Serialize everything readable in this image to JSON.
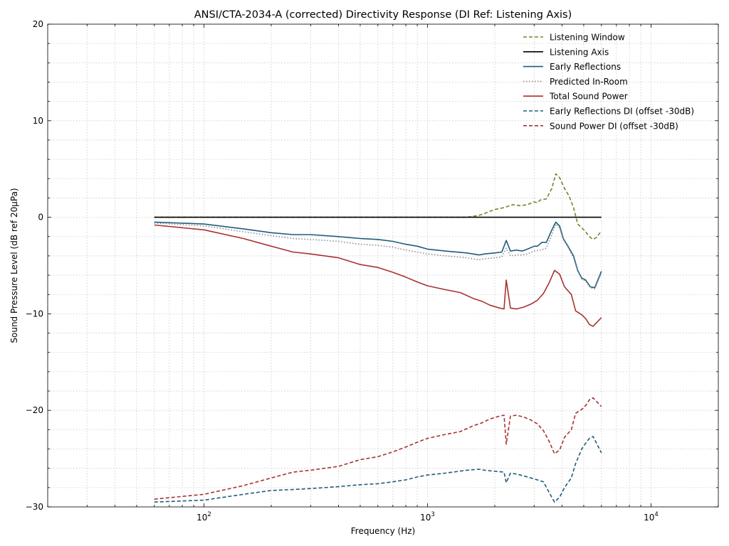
{
  "chart_data": {
    "type": "line",
    "title": "ANSI/CTA-2034-A (corrected) Directivity Response (DI Ref: Listening Axis)",
    "xlabel": "Frequency (Hz)",
    "ylabel": "Sound Pressure Level (dB ref 20µPa)",
    "xscale": "log",
    "xlim": [
      20,
      20000
    ],
    "ylim": [
      -30,
      20
    ],
    "yticks": [
      20,
      10,
      0,
      -10,
      -20,
      -30
    ],
    "ytick_labels": [
      "20",
      "10",
      "0",
      "−10",
      "−20",
      "−30"
    ],
    "xticks": [
      100,
      1000,
      10000
    ],
    "xtick_base": "10",
    "xtick_exponents": [
      "2",
      "3",
      "4"
    ],
    "grid": true,
    "legend_position": "top-right",
    "series": [
      {
        "name": "Listening Window",
        "color": "#6b8a2e",
        "style": "dashed",
        "points": [
          [
            60,
            0
          ],
          [
            400,
            0
          ],
          [
            1500,
            0
          ],
          [
            1700,
            0.2
          ],
          [
            1800,
            0.4
          ],
          [
            2000,
            0.8
          ],
          [
            2200,
            1.0
          ],
          [
            2400,
            1.3
          ],
          [
            2600,
            1.2
          ],
          [
            2800,
            1.3
          ],
          [
            3000,
            1.6
          ],
          [
            3100,
            1.5
          ],
          [
            3200,
            1.8
          ],
          [
            3400,
            1.9
          ],
          [
            3600,
            3.0
          ],
          [
            3750,
            4.5
          ],
          [
            3900,
            4.1
          ],
          [
            4100,
            3.0
          ],
          [
            4300,
            2.2
          ],
          [
            4500,
            1.0
          ],
          [
            4700,
            -0.7
          ],
          [
            4900,
            -1.1
          ],
          [
            5100,
            -1.5
          ],
          [
            5300,
            -2.0
          ],
          [
            5500,
            -2.3
          ],
          [
            5700,
            -2.1
          ],
          [
            6000,
            -1.4
          ]
        ]
      },
      {
        "name": "Listening Axis",
        "color": "#000000",
        "style": "solid",
        "points": [
          [
            60,
            0
          ],
          [
            6000,
            0
          ]
        ]
      },
      {
        "name": "Early Reflections",
        "color": "#1f5c7a",
        "style": "solid",
        "points": [
          [
            60,
            -0.5
          ],
          [
            100,
            -0.7
          ],
          [
            150,
            -1.2
          ],
          [
            200,
            -1.6
          ],
          [
            250,
            -1.8
          ],
          [
            300,
            -1.8
          ],
          [
            400,
            -2.0
          ],
          [
            500,
            -2.2
          ],
          [
            600,
            -2.3
          ],
          [
            700,
            -2.5
          ],
          [
            800,
            -2.8
          ],
          [
            900,
            -3.0
          ],
          [
            1000,
            -3.3
          ],
          [
            1200,
            -3.5
          ],
          [
            1500,
            -3.7
          ],
          [
            1700,
            -3.9
          ],
          [
            1800,
            -3.8
          ],
          [
            2000,
            -3.7
          ],
          [
            2150,
            -3.6
          ],
          [
            2250,
            -2.4
          ],
          [
            2350,
            -3.5
          ],
          [
            2500,
            -3.4
          ],
          [
            2650,
            -3.5
          ],
          [
            2800,
            -3.3
          ],
          [
            3000,
            -3.0
          ],
          [
            3100,
            -3.0
          ],
          [
            3250,
            -2.6
          ],
          [
            3400,
            -2.6
          ],
          [
            3600,
            -1.3
          ],
          [
            3750,
            -0.5
          ],
          [
            3900,
            -0.9
          ],
          [
            4050,
            -2.2
          ],
          [
            4250,
            -3.0
          ],
          [
            4500,
            -4.0
          ],
          [
            4700,
            -5.5
          ],
          [
            4900,
            -6.3
          ],
          [
            5100,
            -6.5
          ],
          [
            5350,
            -7.2
          ],
          [
            5600,
            -7.3
          ],
          [
            6000,
            -5.6
          ]
        ]
      },
      {
        "name": "Predicted In-Room",
        "color": "#8c8c8c",
        "style": "dotted",
        "points": [
          [
            60,
            -0.6
          ],
          [
            100,
            -0.9
          ],
          [
            150,
            -1.5
          ],
          [
            200,
            -1.9
          ],
          [
            250,
            -2.2
          ],
          [
            300,
            -2.3
          ],
          [
            400,
            -2.5
          ],
          [
            500,
            -2.8
          ],
          [
            600,
            -2.9
          ],
          [
            700,
            -3.1
          ],
          [
            800,
            -3.4
          ],
          [
            900,
            -3.6
          ],
          [
            1000,
            -3.8
          ],
          [
            1200,
            -4.0
          ],
          [
            1500,
            -4.2
          ],
          [
            1700,
            -4.4
          ],
          [
            1800,
            -4.3
          ],
          [
            2000,
            -4.2
          ],
          [
            2150,
            -4.1
          ],
          [
            2250,
            -3.2
          ],
          [
            2350,
            -4.0
          ],
          [
            2500,
            -3.9
          ],
          [
            2650,
            -3.9
          ],
          [
            2800,
            -3.8
          ],
          [
            3000,
            -3.5
          ],
          [
            3200,
            -3.4
          ],
          [
            3400,
            -3.2
          ],
          [
            3600,
            -1.8
          ],
          [
            3750,
            -0.7
          ],
          [
            3900,
            -1.1
          ],
          [
            4050,
            -2.3
          ],
          [
            4250,
            -3.1
          ],
          [
            4500,
            -4.2
          ],
          [
            4700,
            -5.6
          ],
          [
            4900,
            -6.4
          ],
          [
            5100,
            -6.6
          ],
          [
            5350,
            -7.3
          ],
          [
            5600,
            -7.4
          ],
          [
            6000,
            -5.8
          ]
        ]
      },
      {
        "name": "Total Sound Power",
        "color": "#a83232",
        "style": "solid",
        "points": [
          [
            60,
            -0.8
          ],
          [
            100,
            -1.3
          ],
          [
            150,
            -2.2
          ],
          [
            200,
            -3.0
          ],
          [
            250,
            -3.6
          ],
          [
            300,
            -3.8
          ],
          [
            400,
            -4.2
          ],
          [
            500,
            -4.9
          ],
          [
            600,
            -5.2
          ],
          [
            700,
            -5.7
          ],
          [
            800,
            -6.2
          ],
          [
            900,
            -6.7
          ],
          [
            1000,
            -7.1
          ],
          [
            1200,
            -7.5
          ],
          [
            1400,
            -7.8
          ],
          [
            1600,
            -8.4
          ],
          [
            1750,
            -8.7
          ],
          [
            1900,
            -9.1
          ],
          [
            2100,
            -9.4
          ],
          [
            2200,
            -9.5
          ],
          [
            2250,
            -6.5
          ],
          [
            2350,
            -9.4
          ],
          [
            2500,
            -9.5
          ],
          [
            2700,
            -9.3
          ],
          [
            2900,
            -9.0
          ],
          [
            3100,
            -8.6
          ],
          [
            3300,
            -7.9
          ],
          [
            3500,
            -6.8
          ],
          [
            3700,
            -5.5
          ],
          [
            3900,
            -5.9
          ],
          [
            4100,
            -7.2
          ],
          [
            4400,
            -8.0
          ],
          [
            4600,
            -9.7
          ],
          [
            4900,
            -10.1
          ],
          [
            5100,
            -10.5
          ],
          [
            5300,
            -11.1
          ],
          [
            5500,
            -11.3
          ],
          [
            6000,
            -10.4
          ]
        ]
      },
      {
        "name": "Early Reflections DI (offset -30dB)",
        "color": "#1f5c7a",
        "style": "dashed",
        "points": [
          [
            60,
            -29.5
          ],
          [
            100,
            -29.3
          ],
          [
            150,
            -28.7
          ],
          [
            200,
            -28.3
          ],
          [
            250,
            -28.2
          ],
          [
            300,
            -28.1
          ],
          [
            400,
            -27.9
          ],
          [
            500,
            -27.7
          ],
          [
            600,
            -27.6
          ],
          [
            700,
            -27.4
          ],
          [
            800,
            -27.2
          ],
          [
            900,
            -26.9
          ],
          [
            1000,
            -26.7
          ],
          [
            1200,
            -26.5
          ],
          [
            1500,
            -26.2
          ],
          [
            1700,
            -26.1
          ],
          [
            1800,
            -26.2
          ],
          [
            2000,
            -26.3
          ],
          [
            2200,
            -26.4
          ],
          [
            2250,
            -27.5
          ],
          [
            2350,
            -26.5
          ],
          [
            2500,
            -26.6
          ],
          [
            2700,
            -26.8
          ],
          [
            2900,
            -27.0
          ],
          [
            3100,
            -27.2
          ],
          [
            3300,
            -27.4
          ],
          [
            3500,
            -28.5
          ],
          [
            3700,
            -29.5
          ],
          [
            3900,
            -29.0
          ],
          [
            4100,
            -28.0
          ],
          [
            4400,
            -27.0
          ],
          [
            4600,
            -25.5
          ],
          [
            4900,
            -24.0
          ],
          [
            5100,
            -23.4
          ],
          [
            5300,
            -22.9
          ],
          [
            5500,
            -22.7
          ],
          [
            6000,
            -24.4
          ]
        ]
      },
      {
        "name": "Sound Power DI (offset -30dB)",
        "color": "#a83232",
        "style": "dashed",
        "points": [
          [
            60,
            -29.2
          ],
          [
            100,
            -28.7
          ],
          [
            150,
            -27.8
          ],
          [
            200,
            -27.0
          ],
          [
            250,
            -26.4
          ],
          [
            300,
            -26.2
          ],
          [
            400,
            -25.8
          ],
          [
            500,
            -25.1
          ],
          [
            600,
            -24.8
          ],
          [
            700,
            -24.3
          ],
          [
            800,
            -23.8
          ],
          [
            900,
            -23.3
          ],
          [
            1000,
            -22.9
          ],
          [
            1200,
            -22.5
          ],
          [
            1400,
            -22.2
          ],
          [
            1600,
            -21.6
          ],
          [
            1750,
            -21.3
          ],
          [
            1900,
            -20.9
          ],
          [
            2100,
            -20.6
          ],
          [
            2200,
            -20.5
          ],
          [
            2250,
            -23.5
          ],
          [
            2350,
            -20.6
          ],
          [
            2500,
            -20.5
          ],
          [
            2700,
            -20.7
          ],
          [
            2900,
            -21.0
          ],
          [
            3100,
            -21.4
          ],
          [
            3300,
            -22.1
          ],
          [
            3500,
            -23.2
          ],
          [
            3700,
            -24.5
          ],
          [
            3900,
            -24.1
          ],
          [
            4100,
            -22.8
          ],
          [
            4400,
            -22.0
          ],
          [
            4600,
            -20.3
          ],
          [
            4900,
            -19.9
          ],
          [
            5100,
            -19.5
          ],
          [
            5300,
            -18.9
          ],
          [
            5500,
            -18.7
          ],
          [
            6000,
            -19.6
          ]
        ]
      }
    ]
  }
}
